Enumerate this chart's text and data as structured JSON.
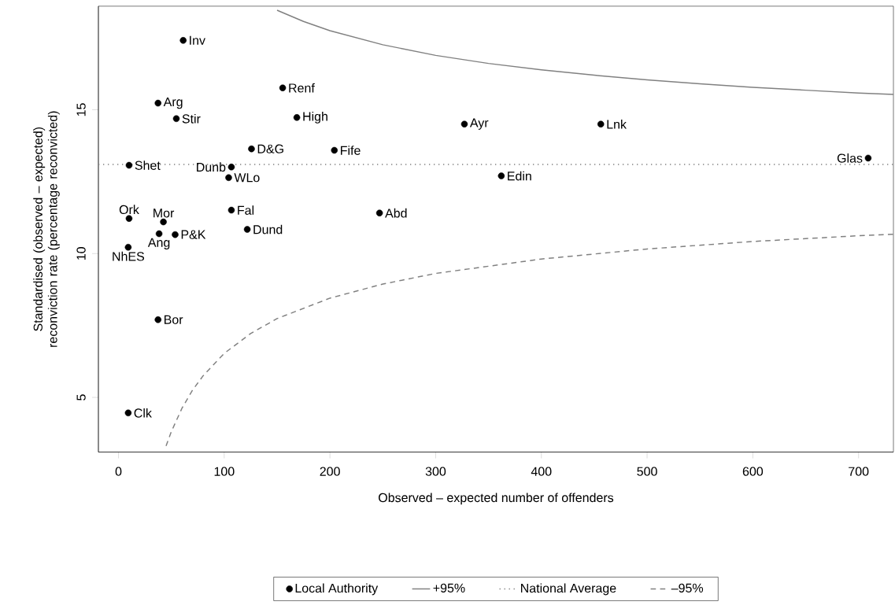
{
  "chart_data": {
    "type": "scatter",
    "xlabel": "Observed – expected number of offenders",
    "ylabel": "Standardised (observed – expected) reconviction rate (percentage reconvicted)",
    "xlim": [
      -19,
      733
    ],
    "ylim": [
      3.1,
      18.6
    ],
    "xticks": [
      0,
      100,
      200,
      300,
      400,
      500,
      600,
      700
    ],
    "yticks": [
      5,
      10,
      15
    ],
    "legend": "bottom",
    "series": [
      {
        "name": "Local Authority",
        "color": "#000000",
        "marker": "circle",
        "x": [
          61.2,
          155.3,
          37.4,
          54.7,
          168.7,
          327.2,
          456.2,
          125.8,
          204.2,
          10.0,
          106.8,
          104.2,
          362.1,
          709.1,
          10.0,
          42.5,
          106.8,
          246.9,
          121.8,
          38.4,
          53.6,
          9.2,
          37.4,
          9.2
        ],
        "values": [
          17.41,
          15.76,
          15.23,
          14.69,
          14.73,
          14.5,
          14.5,
          13.64,
          13.59,
          13.07,
          13.01,
          12.64,
          12.7,
          13.32,
          11.22,
          11.1,
          11.51,
          11.41,
          10.84,
          10.69,
          10.66,
          10.22,
          7.7,
          4.46
        ]
      },
      {
        "name": "+95%",
        "type": "line",
        "color": "#808080",
        "line_style": "solid",
        "marker": "none",
        "x": [
          150,
          175,
          200,
          250,
          300,
          350,
          400,
          450,
          500,
          550,
          600,
          650,
          700,
          733
        ],
        "values": [
          18.46,
          18.07,
          17.75,
          17.26,
          16.89,
          16.61,
          16.39,
          16.2,
          16.04,
          15.9,
          15.78,
          15.68,
          15.58,
          15.53
        ]
      },
      {
        "name": "National Average",
        "type": "line",
        "color": "#808080",
        "line_style": "dotted",
        "marker": "none",
        "x": [
          -19,
          733
        ],
        "values": [
          13.1,
          13.1
        ]
      },
      {
        "name": "–95%",
        "type": "line",
        "color": "#808080",
        "line_style": "dashed",
        "marker": "none",
        "x": [
          45,
          50,
          60,
          70,
          80,
          100,
          125,
          150,
          200,
          250,
          300,
          400,
          500,
          600,
          700,
          733
        ],
        "values": [
          3.31,
          3.81,
          4.62,
          5.25,
          5.75,
          6.53,
          7.22,
          7.74,
          8.45,
          8.94,
          9.31,
          9.81,
          10.16,
          10.42,
          10.62,
          10.67
        ]
      }
    ],
    "annotations": [
      {
        "text": "Inv",
        "x": 61.2,
        "y": 17.41
      },
      {
        "text": "Renf",
        "x": 155.3,
        "y": 15.76
      },
      {
        "text": "Arg",
        "x": 37.4,
        "y": 15.23
      },
      {
        "text": "Stir",
        "x": 54.7,
        "y": 14.69
      },
      {
        "text": "High",
        "x": 168.7,
        "y": 14.73
      },
      {
        "text": "Ayr",
        "x": 327.2,
        "y": 14.5
      },
      {
        "text": "Lnk",
        "x": 456.2,
        "y": 14.5
      },
      {
        "text": "D&G",
        "x": 125.8,
        "y": 13.64
      },
      {
        "text": "Fife",
        "x": 204.2,
        "y": 13.59
      },
      {
        "text": "Shet",
        "x": 10.0,
        "y": 13.07
      },
      {
        "text": "Dunb",
        "x": 106.8,
        "y": 13.01
      },
      {
        "text": "WLo",
        "x": 104.2,
        "y": 12.64
      },
      {
        "text": "Edin",
        "x": 362.1,
        "y": 12.7
      },
      {
        "text": "Glas",
        "x": 709.1,
        "y": 13.32
      },
      {
        "text": "Ork",
        "x": 10.0,
        "y": 11.22
      },
      {
        "text": "Mor",
        "x": 42.5,
        "y": 11.1
      },
      {
        "text": "Fal",
        "x": 106.8,
        "y": 11.51
      },
      {
        "text": "Abd",
        "x": 246.9,
        "y": 11.41
      },
      {
        "text": "Dund",
        "x": 121.8,
        "y": 10.84
      },
      {
        "text": "Ang",
        "x": 38.4,
        "y": 10.69
      },
      {
        "text": "P&K",
        "x": 53.6,
        "y": 10.66
      },
      {
        "text": "NhES",
        "x": 9.2,
        "y": 10.22
      },
      {
        "text": "Bor",
        "x": 37.4,
        "y": 7.7
      },
      {
        "text": "Clk",
        "x": 9.2,
        "y": 4.46
      }
    ]
  }
}
